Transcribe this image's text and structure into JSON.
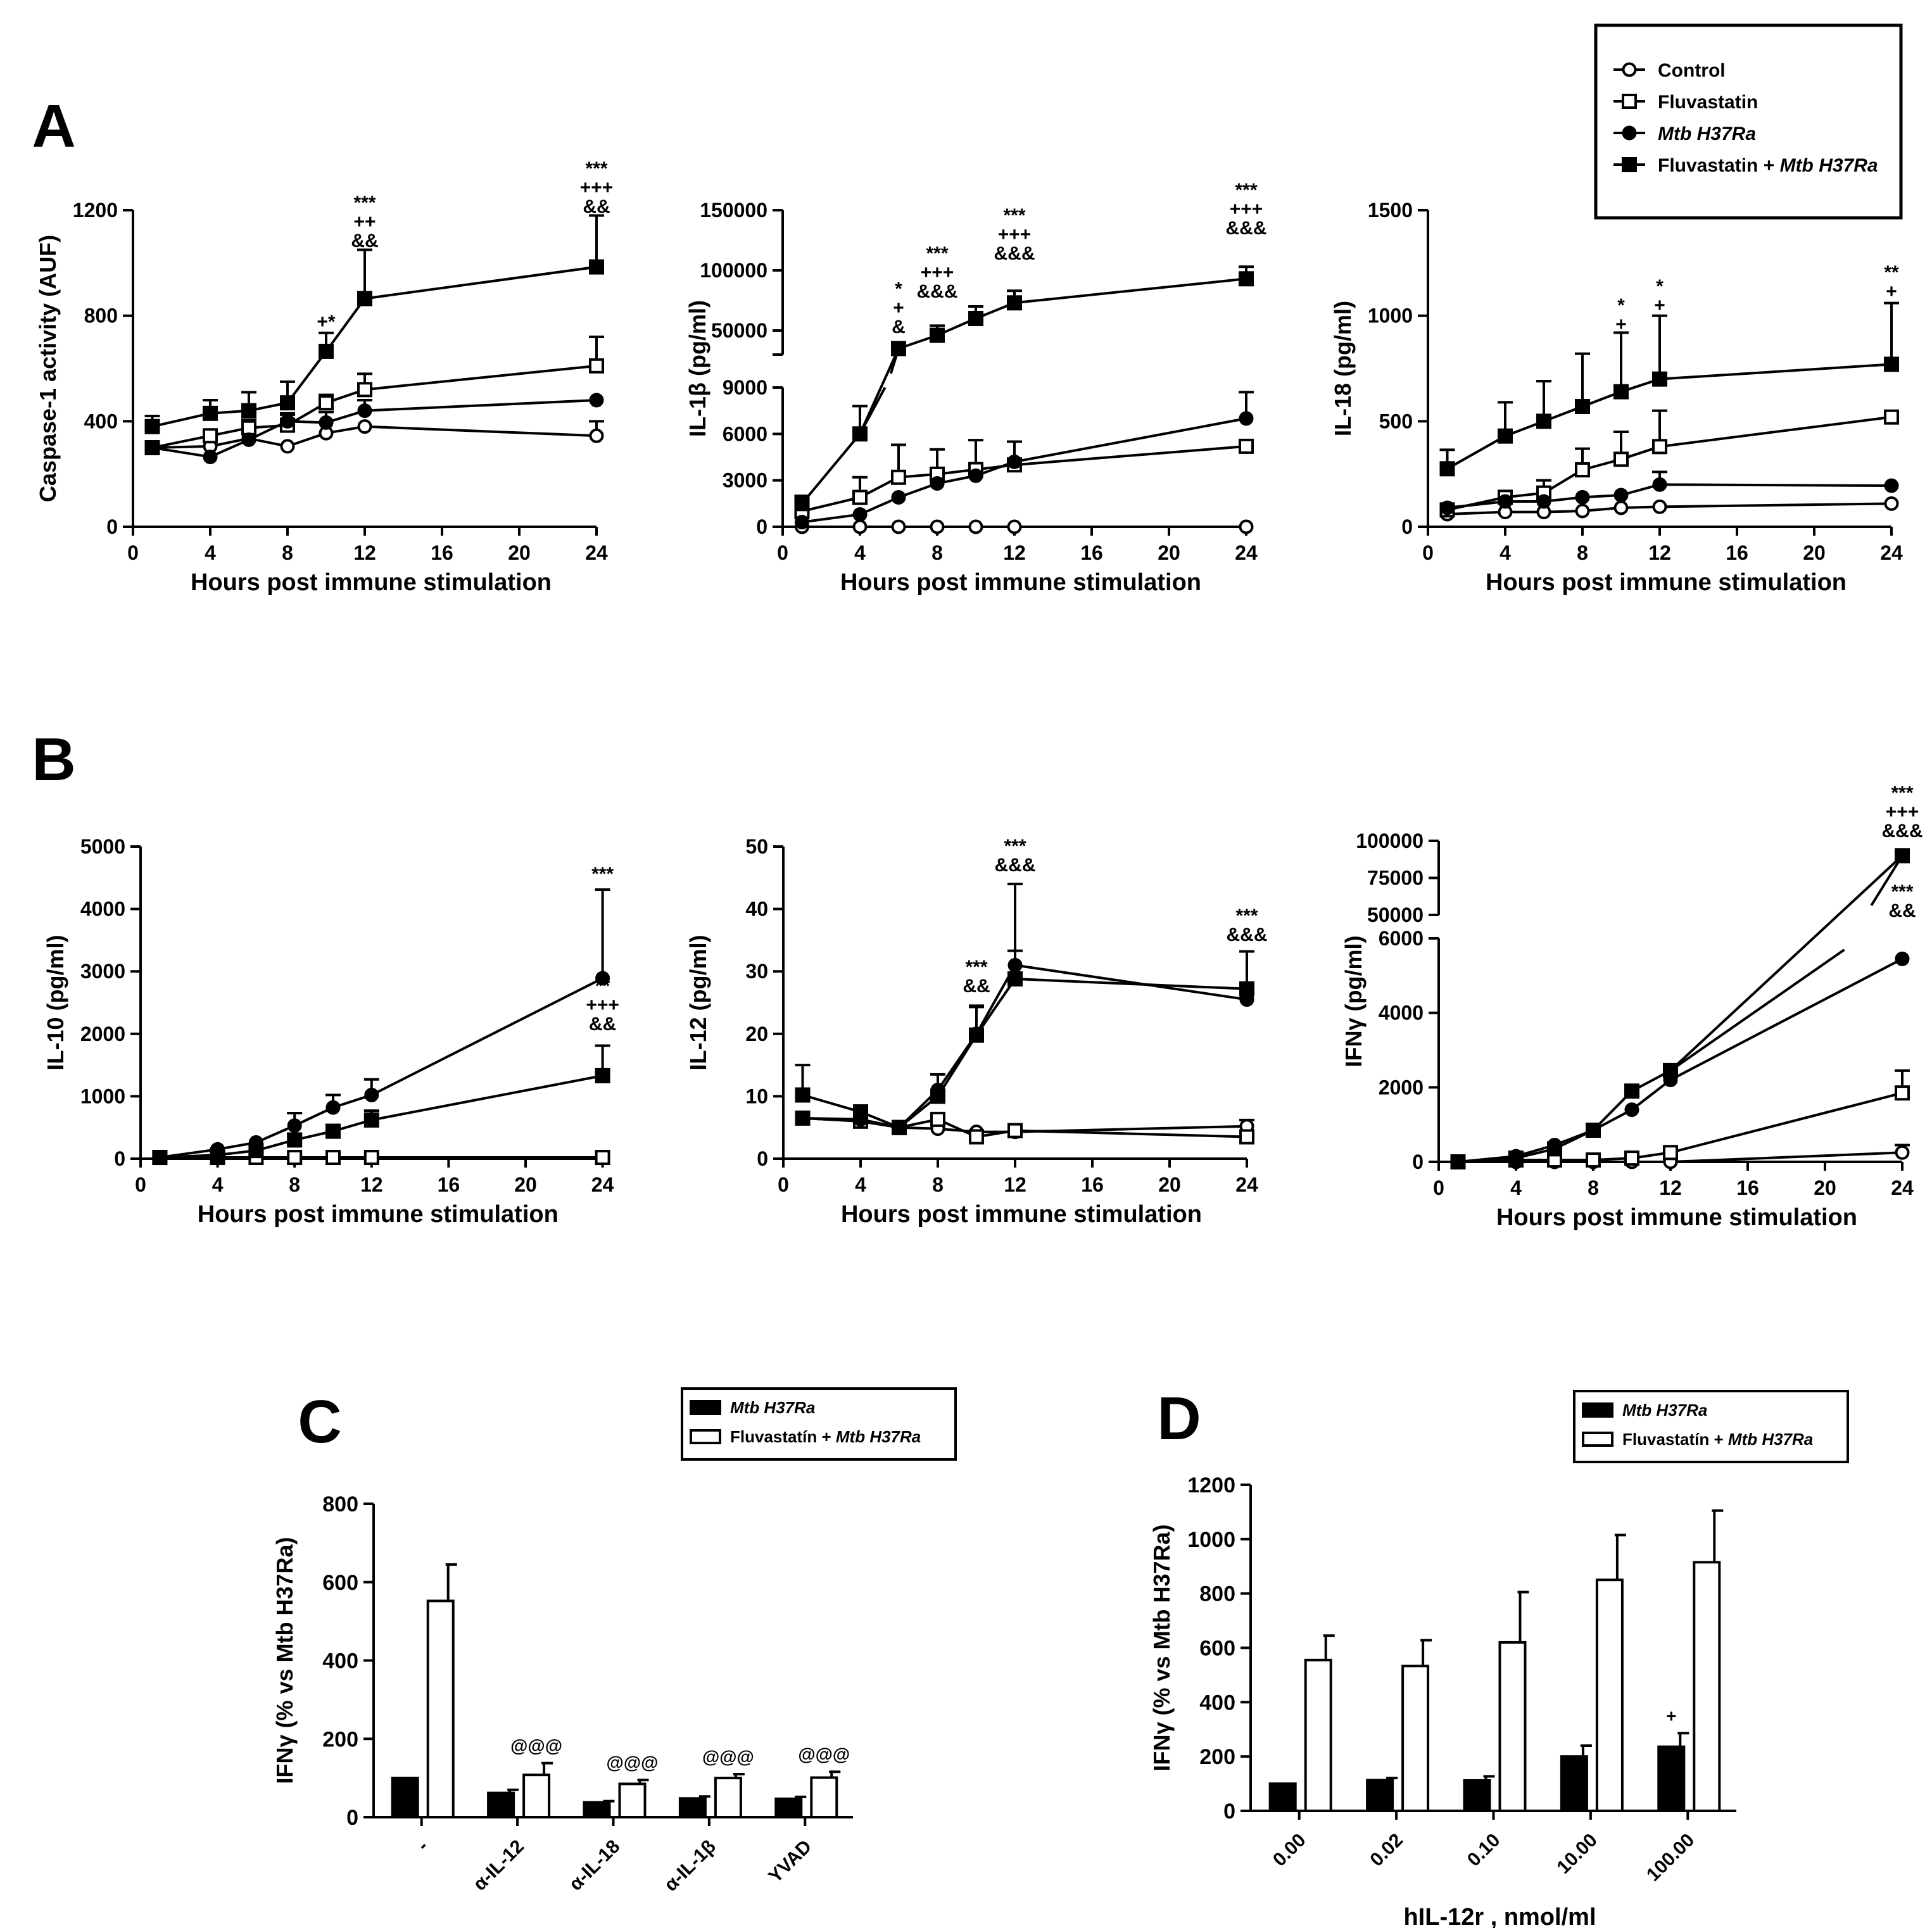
{
  "legend_main": {
    "items": [
      {
        "label": "Control",
        "marker": "open-circle"
      },
      {
        "label": "Fluvastatin",
        "marker": "open-square"
      },
      {
        "label": "Mtb H37Ra",
        "marker": "filled-circle",
        "italic": true
      },
      {
        "label": "Fluvastatin + ",
        "label_italic": "Mtb H37Ra",
        "marker": "filled-square"
      }
    ]
  },
  "panel_letters": [
    "A",
    "B",
    "C",
    "D"
  ],
  "legend_bar": {
    "c": [
      {
        "label": "Mtb H37Ra",
        "fill": "#000000"
      },
      {
        "label": "Fluvastatín + ",
        "label_italic": "Mtb H37Ra",
        "fill": "#ffffff"
      }
    ],
    "d": [
      {
        "label": "Mtb H37Ra",
        "fill": "#000000"
      },
      {
        "label": "Fluvastatín + ",
        "label_italic": "Mtb H37Ra",
        "fill": "#ffffff"
      }
    ]
  },
  "chart_data": [
    {
      "id": "A1",
      "type": "line",
      "xlabel": "Hours post immune stimulation",
      "ylabel": "Caspase-1 activity (AUF)",
      "xlim": [
        0,
        24
      ],
      "xticks": [
        0,
        4,
        8,
        12,
        16,
        20,
        24
      ],
      "ylim": [
        0,
        1200
      ],
      "yticks": [
        0,
        400,
        800,
        1200
      ],
      "x": [
        1,
        4,
        6,
        8,
        10,
        12,
        24
      ],
      "series": [
        {
          "name": "Control",
          "values": [
            300,
            305,
            335,
            305,
            355,
            380,
            345
          ],
          "err": [
            0,
            0,
            0,
            0,
            0,
            0,
            55
          ]
        },
        {
          "name": "Fluvastatin",
          "values": [
            300,
            345,
            375,
            385,
            470,
            520,
            610
          ],
          "err": [
            0,
            0,
            30,
            40,
            30,
            60,
            110
          ]
        },
        {
          "name": "Mtb H37Ra",
          "values": [
            300,
            265,
            330,
            400,
            395,
            440,
            480
          ],
          "err": [
            0,
            0,
            0,
            30,
            40,
            40,
            0
          ]
        },
        {
          "name": "Fluvastatin + Mtb H37Ra",
          "values": [
            380,
            430,
            440,
            470,
            665,
            865,
            985
          ],
          "err": [
            40,
            50,
            70,
            80,
            70,
            185,
            195
          ]
        }
      ],
      "annotations": [
        {
          "x": 10,
          "lines": [
            "+",
            "*"
          ]
        },
        {
          "x": 12,
          "lines": [
            "***",
            "++",
            "&&"
          ]
        },
        {
          "x": 24,
          "lines": [
            "***",
            "+++",
            "&&"
          ]
        }
      ]
    },
    {
      "id": "A2",
      "type": "line",
      "xlabel": "Hours post immune stimulation",
      "ylabel": "IL-1β (pg/ml)",
      "xlim": [
        0,
        24
      ],
      "xticks": [
        0,
        4,
        8,
        12,
        16,
        20,
        24
      ],
      "ylim": [
        0,
        150000
      ],
      "yticks_lower": [
        0,
        3000,
        6000,
        9000
      ],
      "yticks_upper": [
        50000,
        100000,
        150000
      ],
      "axis_break": [
        9000,
        30000
      ],
      "x": [
        1,
        4,
        6,
        8,
        10,
        12,
        24
      ],
      "series": [
        {
          "name": "Control",
          "values": [
            0,
            0,
            0,
            0,
            0,
            0,
            0
          ],
          "err": [
            0,
            0,
            0,
            0,
            0,
            0,
            0
          ]
        },
        {
          "name": "Fluvastatin",
          "values": [
            1000,
            1900,
            3200,
            3400,
            3700,
            4000,
            5200
          ],
          "err": [
            500,
            1300,
            2100,
            1600,
            1900,
            1500,
            0
          ]
        },
        {
          "name": "Mtb H37Ra",
          "values": [
            300,
            800,
            1900,
            2800,
            3300,
            4200,
            7000
          ],
          "err": [
            0,
            0,
            0,
            0,
            0,
            0,
            1700
          ]
        },
        {
          "name": "Fluvastatin + Mtb H37Ra",
          "values": [
            1500,
            6000,
            35000,
            46000,
            60000,
            73000,
            93000
          ],
          "err": [
            500,
            1800,
            3000,
            8000,
            10000,
            10000,
            10000
          ]
        }
      ],
      "annotations": [
        {
          "x": 6,
          "lines": [
            "*",
            "+",
            "&"
          ]
        },
        {
          "x": 8,
          "lines": [
            "***",
            "+++",
            "&&&"
          ]
        },
        {
          "x": 12,
          "lines": [
            "***",
            "+++",
            "&&&"
          ]
        },
        {
          "x": 24,
          "lines": [
            "***",
            "+++",
            "&&&"
          ]
        }
      ]
    },
    {
      "id": "A3",
      "type": "line",
      "xlabel": "Hours post immune stimulation",
      "ylabel": "IL-18 (pg/ml)",
      "xlim": [
        0,
        24
      ],
      "xticks": [
        0,
        4,
        8,
        12,
        16,
        20,
        24
      ],
      "ylim": [
        0,
        1500
      ],
      "yticks": [
        0,
        500,
        1000,
        1500
      ],
      "x": [
        1,
        4,
        6,
        8,
        10,
        12,
        24
      ],
      "series": [
        {
          "name": "Control",
          "values": [
            60,
            70,
            70,
            75,
            90,
            95,
            110
          ],
          "err": [
            0,
            0,
            0,
            0,
            0,
            0,
            0
          ]
        },
        {
          "name": "Fluvastatin",
          "values": [
            80,
            140,
            160,
            270,
            320,
            380,
            520
          ],
          "err": [
            0,
            0,
            60,
            100,
            130,
            170,
            0
          ]
        },
        {
          "name": "Mtb H37Ra",
          "values": [
            90,
            120,
            120,
            140,
            150,
            200,
            195
          ],
          "err": [
            0,
            0,
            0,
            0,
            0,
            60,
            0
          ]
        },
        {
          "name": "Fluvastatin + Mtb H37Ra",
          "values": [
            275,
            430,
            500,
            570,
            640,
            700,
            770
          ],
          "err": [
            90,
            160,
            190,
            250,
            280,
            300,
            290
          ]
        }
      ],
      "annotations": [
        {
          "x": 10,
          "lines": [
            "*",
            "+"
          ]
        },
        {
          "x": 12,
          "lines": [
            "*",
            "+"
          ]
        },
        {
          "x": 24,
          "lines": [
            "**",
            "+"
          ]
        }
      ]
    },
    {
      "id": "B1",
      "type": "line",
      "xlabel": "Hours post immune stimulation",
      "ylabel": "IL-10 (pg/ml)",
      "xlim": [
        0,
        24
      ],
      "xticks": [
        0,
        4,
        8,
        12,
        16,
        20,
        24
      ],
      "ylim": [
        0,
        5000
      ],
      "yticks": [
        0,
        1000,
        2000,
        3000,
        4000,
        5000
      ],
      "x": [
        1,
        4,
        6,
        8,
        10,
        12,
        24
      ],
      "series": [
        {
          "name": "Control",
          "values": [
            20,
            20,
            20,
            20,
            20,
            20,
            20
          ],
          "err": [
            0,
            0,
            0,
            0,
            0,
            0,
            0
          ]
        },
        {
          "name": "Fluvastatin",
          "values": [
            20,
            20,
            20,
            20,
            20,
            20,
            20
          ],
          "err": [
            0,
            0,
            0,
            0,
            0,
            0,
            0
          ]
        },
        {
          "name": "Mtb H37Ra",
          "values": [
            20,
            150,
            260,
            530,
            820,
            1020,
            2890
          ],
          "err": [
            0,
            0,
            0,
            200,
            200,
            250,
            1420
          ]
        },
        {
          "name": "Fluvastatin + Mtb H37Ra",
          "values": [
            20,
            60,
            130,
            300,
            440,
            620,
            1330
          ],
          "err": [
            0,
            0,
            0,
            100,
            100,
            150,
            480
          ]
        }
      ],
      "annotations": [
        {
          "x": 24,
          "lines": [
            "***"
          ]
        },
        {
          "x": 24,
          "lines": [
            "**",
            "+++",
            "&&"
          ]
        }
      ]
    },
    {
      "id": "B2",
      "type": "line",
      "xlabel": "Hours post immune stimulation",
      "ylabel": "IL-12 (pg/ml)",
      "xlim": [
        0,
        24
      ],
      "xticks": [
        0,
        4,
        8,
        12,
        16,
        20,
        24
      ],
      "ylim": [
        0,
        50
      ],
      "yticks": [
        0,
        10,
        20,
        30,
        40,
        50
      ],
      "x": [
        1,
        4,
        6,
        8,
        10,
        12,
        24
      ],
      "series": [
        {
          "name": "Control",
          "values": [
            6.5,
            6,
            5,
            4.8,
            4.3,
            4.3,
            5.2
          ],
          "err": [
            0,
            0,
            0,
            0,
            0,
            0,
            1
          ]
        },
        {
          "name": "Fluvastatin",
          "values": [
            6.5,
            6,
            5,
            6.3,
            3.5,
            4.5,
            3.5
          ],
          "err": [
            0,
            0,
            0,
            0,
            0,
            0,
            0
          ]
        },
        {
          "name": "Mtb H37Ra",
          "values": [
            6.5,
            6.3,
            5,
            11,
            20,
            31,
            25.5
          ],
          "err": [
            0,
            0,
            0,
            0,
            4.5,
            13,
            0
          ]
        },
        {
          "name": "Fluvastatin + Mtb H37Ra",
          "values": [
            10.2,
            7.5,
            5,
            10,
            19.8,
            28.8,
            27.2
          ],
          "err": [
            4.8,
            1,
            0,
            3.5,
            4.5,
            4.5,
            6
          ]
        }
      ],
      "annotations": [
        {
          "x": 10,
          "lines": [
            "***",
            "&&"
          ]
        },
        {
          "x": 12,
          "lines": [
            "***",
            "&&&"
          ]
        },
        {
          "x": 24,
          "lines": [
            "***",
            "&&&"
          ]
        }
      ]
    },
    {
      "id": "B3",
      "type": "line",
      "xlabel": "Hours post immune stimulation",
      "ylabel": "IFNγ (pg/ml)",
      "xlim": [
        0,
        24
      ],
      "xticks": [
        0,
        4,
        8,
        12,
        16,
        20,
        24
      ],
      "ylim": [
        0,
        100000
      ],
      "yticks_lower": [
        0,
        2000,
        4000,
        6000
      ],
      "yticks_upper": [
        50000,
        75000,
        100000
      ],
      "axis_break": [
        6000,
        50000
      ],
      "x": [
        1,
        4,
        6,
        8,
        10,
        12,
        24
      ],
      "series": [
        {
          "name": "Control",
          "values": [
            0,
            0,
            0,
            0,
            0,
            0,
            250
          ],
          "err": [
            0,
            0,
            0,
            0,
            0,
            0,
            200
          ]
        },
        {
          "name": "Fluvastatin",
          "values": [
            0,
            50,
            50,
            50,
            100,
            250,
            1850
          ],
          "err": [
            0,
            0,
            0,
            0,
            0,
            0,
            600
          ]
        },
        {
          "name": "Mtb H37Ra",
          "values": [
            0,
            150,
            450,
            850,
            1400,
            2200,
            5450
          ],
          "err": [
            0,
            0,
            0,
            0,
            0,
            0,
            0
          ]
        },
        {
          "name": "Fluvastatin + Mtb H37Ra",
          "values": [
            0,
            100,
            350,
            850,
            1900,
            2450,
            90000
          ],
          "err": [
            0,
            0,
            0,
            0,
            0,
            0,
            0
          ]
        }
      ],
      "annotations": [
        {
          "x": 24,
          "lines": [
            "***",
            "+++",
            "&&&"
          ]
        },
        {
          "x": 24,
          "lines": [
            "***",
            "&&"
          ]
        }
      ]
    },
    {
      "id": "C",
      "type": "bar",
      "ylabel": "IFNγ (% vs Mtb H37Ra)",
      "ylim": [
        0,
        800
      ],
      "yticks": [
        0,
        200,
        400,
        600,
        800
      ],
      "categories": [
        "-",
        "α-IL-12",
        "α-IL-18",
        "α-IL-1β",
        "YVAD"
      ],
      "series": [
        {
          "name": "Mtb H37Ra",
          "values": [
            100,
            62,
            38,
            48,
            47
          ],
          "err": [
            0,
            8,
            3,
            5,
            5
          ]
        },
        {
          "name": "Fluvastatín + Mtb H37Ra",
          "values": [
            552,
            108,
            85,
            100,
            101
          ],
          "err": [
            93,
            30,
            10,
            10,
            15
          ]
        }
      ],
      "annotations": [
        {
          "category": "α-IL-12",
          "text": "@@@"
        },
        {
          "category": "α-IL-18",
          "text": "@@@"
        },
        {
          "category": "α-IL-1β",
          "text": "@@@"
        },
        {
          "category": "YVAD",
          "text": "@@@"
        }
      ]
    },
    {
      "id": "D",
      "type": "bar",
      "xlabel": "hIL-12r , nmol/ml",
      "ylabel": "IFNγ (% vs Mtb H37Ra)",
      "ylim": [
        0,
        1200
      ],
      "yticks": [
        0,
        200,
        400,
        600,
        800,
        1000,
        1200
      ],
      "categories": [
        "0.00",
        "0.02",
        "0.10",
        "10.00",
        "100.00"
      ],
      "series": [
        {
          "name": "Mtb H37Ra",
          "values": [
            100,
            113,
            112,
            200,
            236
          ],
          "err": [
            0,
            8,
            15,
            40,
            50
          ]
        },
        {
          "name": "Fluvastatín + Mtb H37Ra",
          "values": [
            555,
            533,
            620,
            850,
            915
          ],
          "err": [
            90,
            95,
            185,
            165,
            190
          ]
        }
      ],
      "annotations": [
        {
          "category": "100.00",
          "text": "+"
        }
      ]
    }
  ]
}
